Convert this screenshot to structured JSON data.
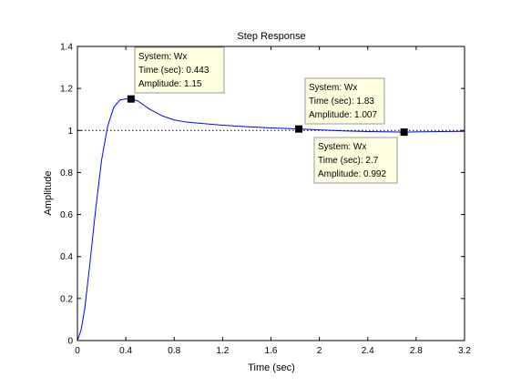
{
  "chart_data": {
    "type": "line",
    "title": "Step Response",
    "xlabel": "Time (sec)",
    "ylabel": "Amplitude",
    "xlim": [
      0,
      3.2
    ],
    "ylim": [
      0,
      1.4
    ],
    "xticks": [
      0,
      0.4,
      0.8,
      1.2,
      1.6,
      2,
      2.4,
      2.8,
      3.2
    ],
    "xtick_labels": [
      "0",
      "0.4",
      "0.8",
      "1.2",
      "1.6",
      "2",
      "2.4",
      "2.8",
      "3.2"
    ],
    "yticks": [
      0,
      0.2,
      0.4,
      0.6,
      0.8,
      1,
      1.2,
      1.4
    ],
    "ytick_labels": [
      "0",
      "0.2",
      "0.4",
      "0.6",
      "0.8",
      "1",
      "1.2",
      "1.4"
    ],
    "grid": false,
    "reference_line": {
      "y": 1,
      "style": "dotted"
    },
    "series": [
      {
        "color": "#0000ff",
        "x": [
          0,
          0.03,
          0.06,
          0.1,
          0.15,
          0.2,
          0.25,
          0.3,
          0.35,
          0.4,
          0.443,
          0.5,
          0.55,
          0.6,
          0.7,
          0.8,
          0.9,
          1.0,
          1.2,
          1.4,
          1.6,
          1.83,
          2.0,
          2.2,
          2.4,
          2.6,
          2.7,
          2.8,
          3.0,
          3.2
        ],
        "y": [
          0,
          0.05,
          0.15,
          0.35,
          0.62,
          0.86,
          1.02,
          1.11,
          1.145,
          1.15,
          1.15,
          1.14,
          1.12,
          1.1,
          1.07,
          1.05,
          1.04,
          1.035,
          1.025,
          1.018,
          1.012,
          1.007,
          1.003,
          0.998,
          0.995,
          0.993,
          0.992,
          0.993,
          0.995,
          0.996
        ]
      }
    ],
    "datatips": [
      {
        "x": 0.443,
        "y": 1.15,
        "label_system": "System: Wx",
        "label_time": "Time (sec): 0.443",
        "label_amplitude": "Amplitude: 1.15"
      },
      {
        "x": 1.83,
        "y": 1.007,
        "label_system": "System: Wx",
        "label_time": "Time (sec): 1.83",
        "label_amplitude": "Amplitude: 1.007"
      },
      {
        "x": 2.7,
        "y": 0.992,
        "label_system": "System: Wx",
        "label_time": "Time (sec): 2.7",
        "label_amplitude": "Amplitude: 0.992"
      }
    ]
  }
}
